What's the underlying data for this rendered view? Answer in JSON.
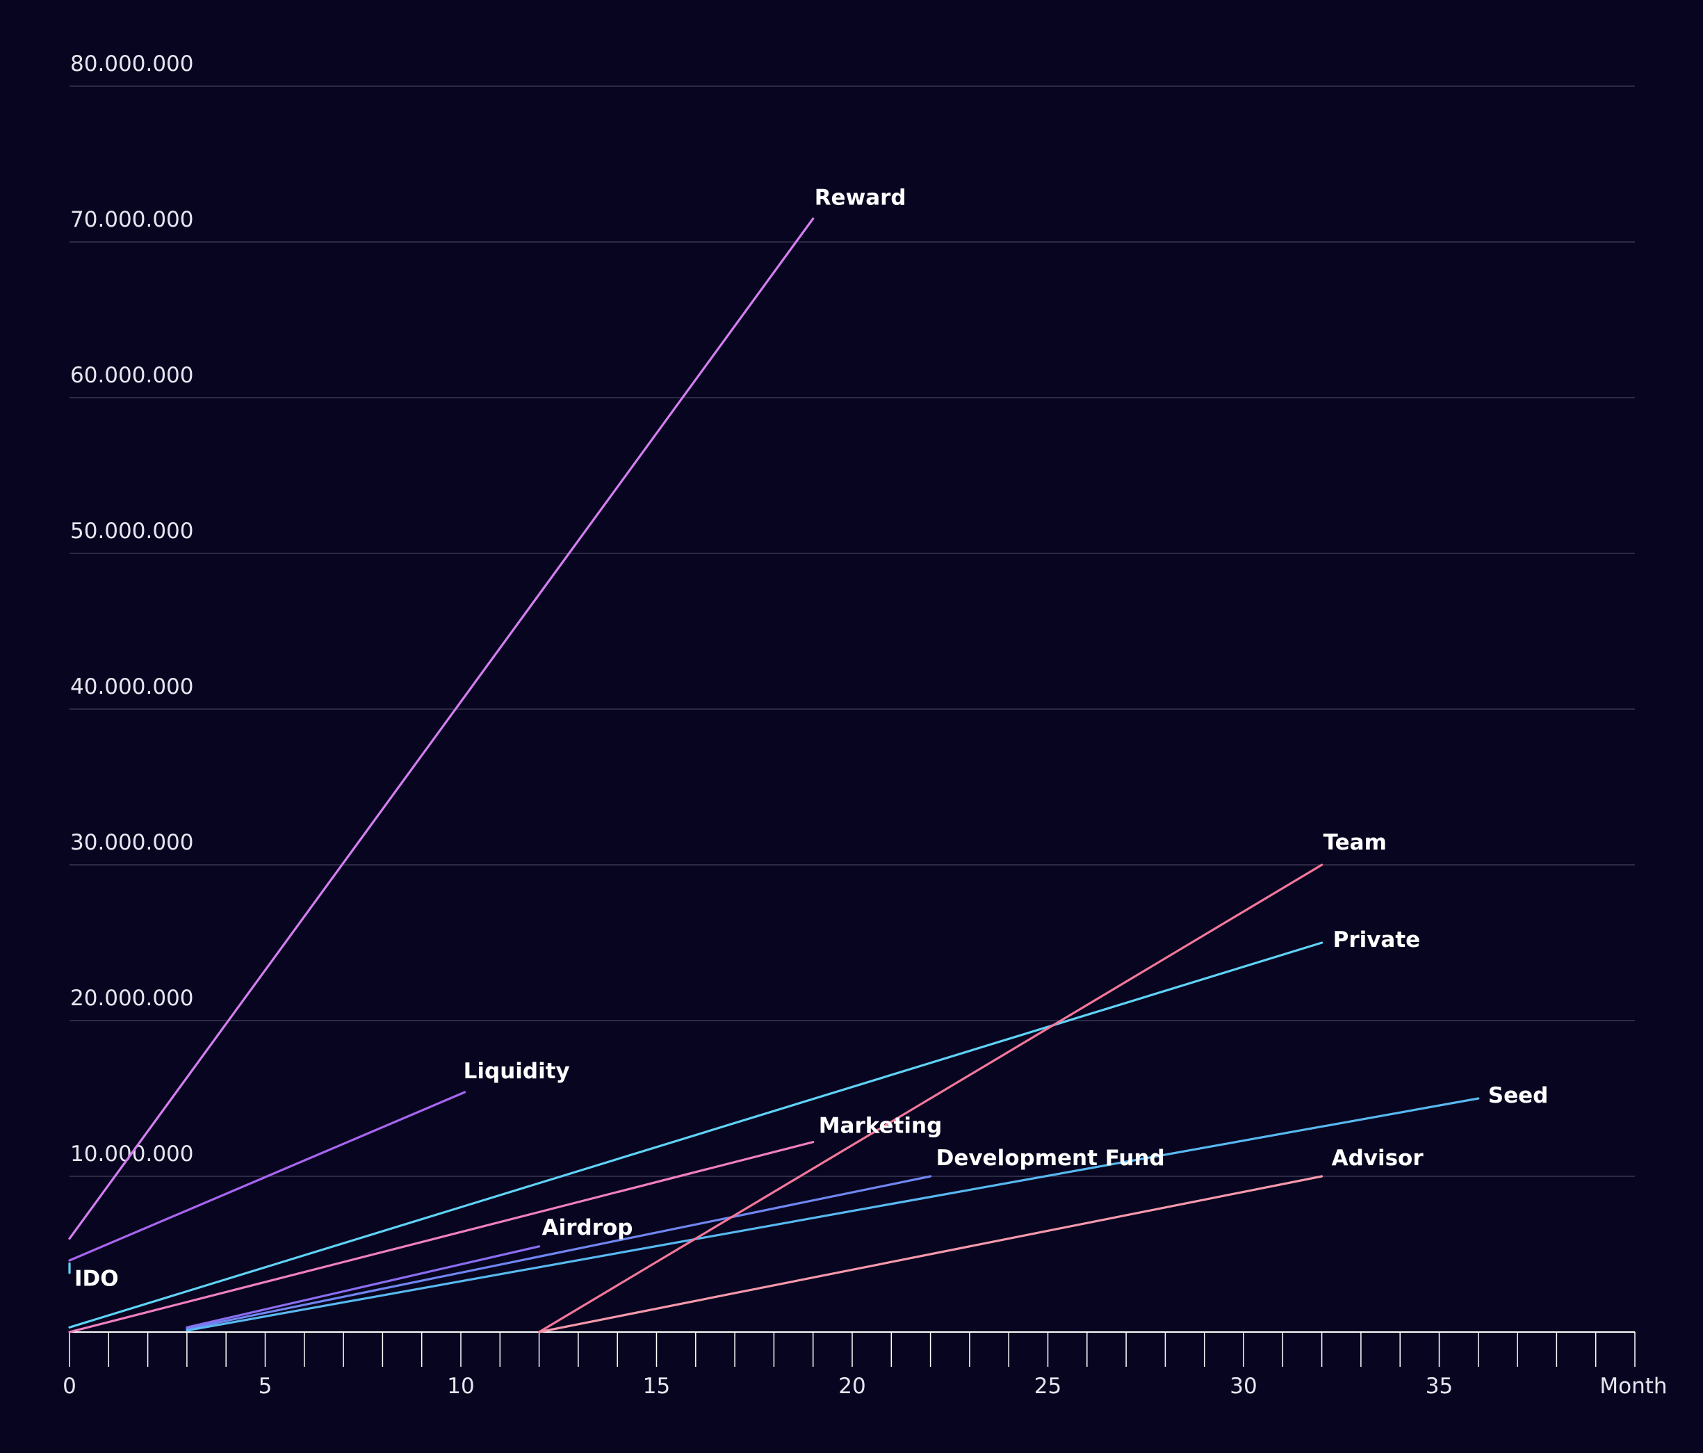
{
  "chart_data": {
    "type": "line",
    "xlabel": "Month",
    "ylabel": "",
    "xlim": [
      0,
      40
    ],
    "ylim": [
      0,
      80000000
    ],
    "x_ticks": [
      0,
      5,
      10,
      15,
      20,
      25,
      30,
      35
    ],
    "x_tick_labels": [
      "0",
      "5",
      "10",
      "15",
      "20",
      "25",
      "30",
      "35"
    ],
    "y_ticks": [
      10000000,
      20000000,
      30000000,
      40000000,
      50000000,
      60000000,
      70000000,
      80000000
    ],
    "y_tick_labels": [
      "10.000.000",
      "20.000.000",
      "30.000.000",
      "40.000.000",
      "50.000.000",
      "60.000.000",
      "70.000.000",
      "80.000.000"
    ],
    "grid": true,
    "series": [
      {
        "name": "Reward",
        "color": "#d47ef0",
        "x": [
          0,
          19
        ],
        "y": [
          6000000,
          71500000
        ]
      },
      {
        "name": "Liquidity",
        "color": "#a865f0",
        "x": [
          0,
          10.1
        ],
        "y": [
          4600000,
          15400000
        ]
      },
      {
        "name": "IDO",
        "color": "#5fd3f5",
        "x": [
          0,
          0
        ],
        "y": [
          3800000,
          4400000
        ]
      },
      {
        "name": "Private",
        "color": "#5fd3f5",
        "x": [
          0,
          32
        ],
        "y": [
          300000,
          25000000
        ]
      },
      {
        "name": "Marketing",
        "color": "#f07fc0",
        "x": [
          0,
          19
        ],
        "y": [
          0,
          12200000
        ]
      },
      {
        "name": "Airdrop",
        "color": "#8a6df0",
        "x": [
          3,
          12
        ],
        "y": [
          300000,
          5500000
        ]
      },
      {
        "name": "Development Fund",
        "color": "#6f86f0",
        "x": [
          3,
          22
        ],
        "y": [
          200000,
          10000000
        ]
      },
      {
        "name": "Seed",
        "color": "#58b8f0",
        "x": [
          3,
          36
        ],
        "y": [
          100000,
          15000000
        ]
      },
      {
        "name": "Team",
        "color": "#f2779a",
        "x": [
          12,
          32
        ],
        "y": [
          0,
          30000000
        ]
      },
      {
        "name": "Advisor",
        "color": "#f598ab",
        "x": [
          12,
          32
        ],
        "y": [
          0,
          10000000
        ]
      }
    ]
  }
}
